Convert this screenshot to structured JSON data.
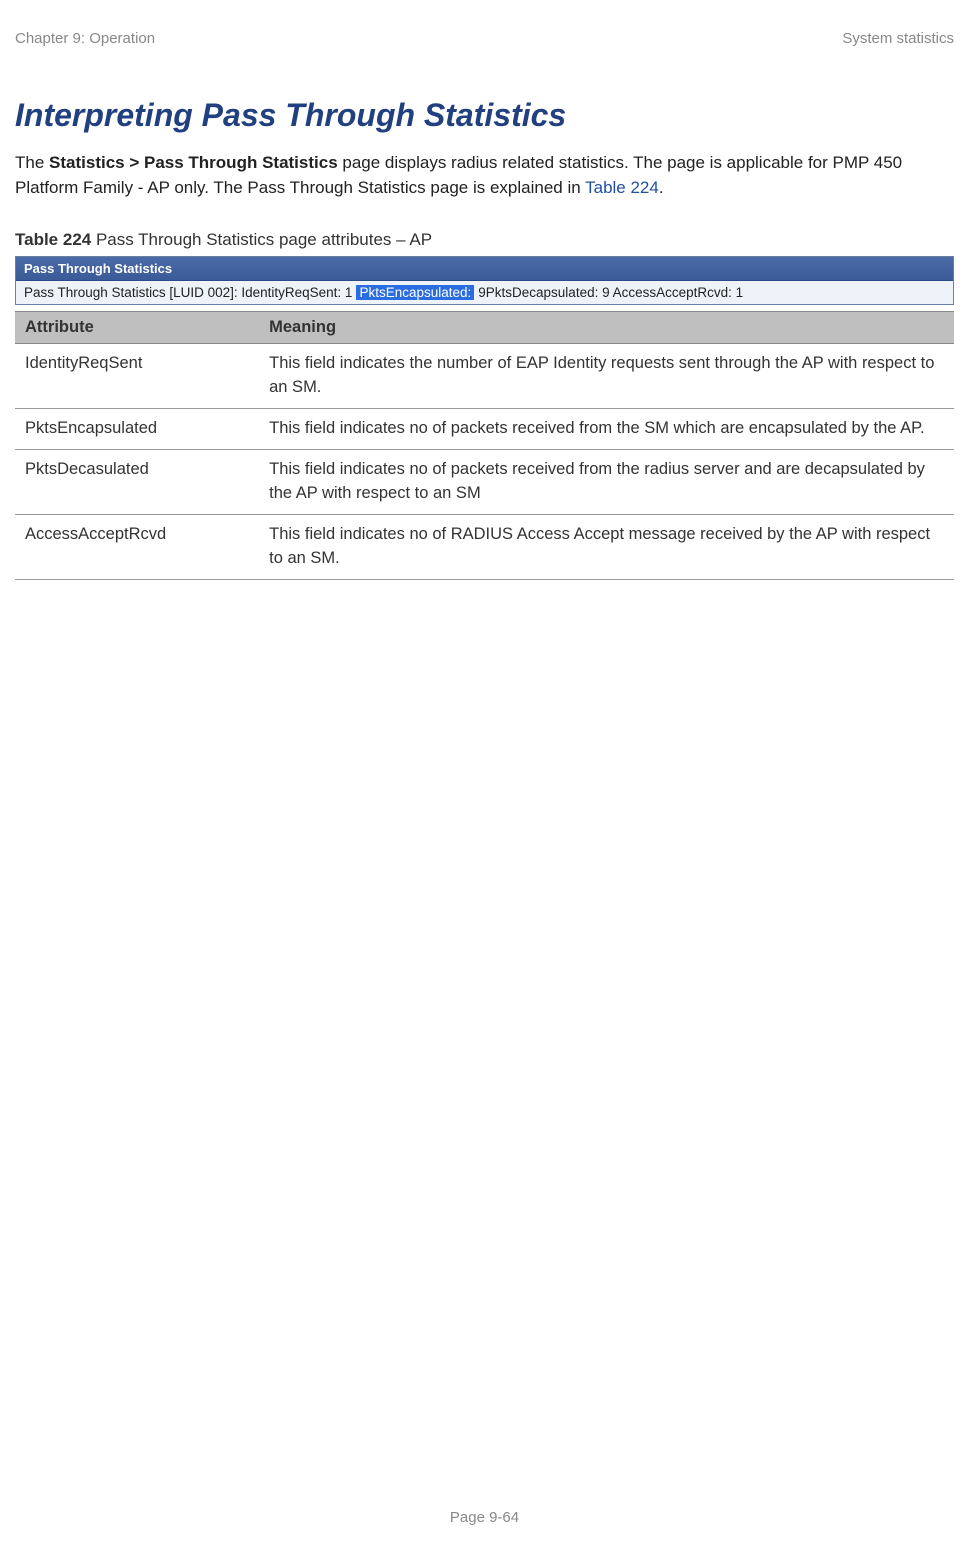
{
  "header": {
    "left": "Chapter 9:  Operation",
    "right": "System statistics"
  },
  "title": "Interpreting Pass Through Statistics",
  "intro": {
    "prefix": "The ",
    "bold1": "Statistics > Pass Through Statistics",
    "mid": " page displays radius related statistics. The page is applicable for PMP 450 Platform Family - AP only. The Pass Through Statistics page is explained in ",
    "link": "Table 224",
    "suffix": "."
  },
  "caption": {
    "bold": "Table 224",
    "rest": " Pass Through Statistics page attributes – AP"
  },
  "screenshot": {
    "titlebar": "Pass Through Statistics",
    "line_prefix": "Pass Through Statistics [LUID 002]:  IdentityReqSent: 1 ",
    "highlight": "PktsEncapsulated:",
    "line_mid": " 9PktsDecapsulated: 9 AccessAcceptRcvd: 1"
  },
  "table": {
    "headers": {
      "col1": "Attribute",
      "col2": "Meaning"
    },
    "rows": [
      {
        "attr": "IdentityReqSent",
        "meaning": "This field indicates the number of EAP Identity requests sent through the AP with respect to an SM."
      },
      {
        "attr": "PktsEncapsulated",
        "meaning": "This field indicates no of packets received from the SM which are encapsulated by the AP."
      },
      {
        "attr": "PktsDecasulated",
        "meaning": "This field indicates no of packets received from the radius server and are decapsulated by the AP with respect to an SM"
      },
      {
        "attr": "AccessAcceptRcvd",
        "meaning": "This field indicates no of RADIUS Access Accept message received by the AP with respect to an SM."
      }
    ]
  },
  "footer": "Page 9-64",
  "colors": {
    "title_color": "#204080",
    "header_text": "#888888",
    "link_color": "#2050a0",
    "th_bg": "#bfbfbf",
    "ss_title_bg": "#3a5a98",
    "ss_body_bg": "#eef2f9",
    "highlight_bg": "#2a6de0"
  }
}
